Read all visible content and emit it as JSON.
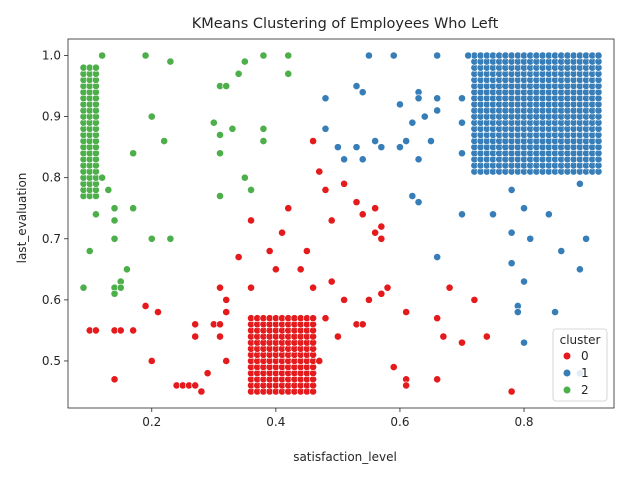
{
  "chart_data": {
    "type": "scatter",
    "title": "KMeans Clustering of Employees Who Left",
    "xlabel": "satisfaction_level",
    "ylabel": "last_evaluation",
    "xlim": [
      0.065,
      0.945
    ],
    "ylim": [
      0.423,
      1.027
    ],
    "x_ticks": [
      0.2,
      0.4,
      0.6,
      0.8
    ],
    "x_tick_labels": [
      "0.2",
      "0.4",
      "0.6",
      "0.8"
    ],
    "y_ticks": [
      0.5,
      0.6,
      0.7,
      0.8,
      0.9,
      1.0
    ],
    "y_tick_labels": [
      "0.5",
      "0.6",
      "0.7",
      "0.8",
      "0.9",
      "1.0"
    ],
    "grid": false,
    "legend": {
      "title": "cluster",
      "placement": "bottom-right",
      "entries": [
        {
          "label": "0",
          "color": "#e41a1c"
        },
        {
          "label": "1",
          "color": "#377eb8"
        },
        {
          "label": "2",
          "color": "#4daf4a"
        }
      ]
    },
    "series": [
      {
        "name": "0",
        "color": "#e41a1c",
        "dense_block": {
          "x_range": [
            0.36,
            0.46
          ],
          "x_step": 0.01,
          "y_range": [
            0.45,
            0.57
          ],
          "y_step": 0.01
        },
        "points": [
          [
            0.1,
            0.55
          ],
          [
            0.11,
            0.55
          ],
          [
            0.14,
            0.55
          ],
          [
            0.15,
            0.55
          ],
          [
            0.17,
            0.55
          ],
          [
            0.14,
            0.47
          ],
          [
            0.19,
            0.59
          ],
          [
            0.21,
            0.58
          ],
          [
            0.2,
            0.5
          ],
          [
            0.24,
            0.46
          ],
          [
            0.25,
            0.46
          ],
          [
            0.26,
            0.46
          ],
          [
            0.27,
            0.46
          ],
          [
            0.28,
            0.45
          ],
          [
            0.29,
            0.48
          ],
          [
            0.27,
            0.56
          ],
          [
            0.27,
            0.54
          ],
          [
            0.3,
            0.56
          ],
          [
            0.31,
            0.56
          ],
          [
            0.31,
            0.54
          ],
          [
            0.31,
            0.62
          ],
          [
            0.32,
            0.6
          ],
          [
            0.32,
            0.58
          ],
          [
            0.32,
            0.5
          ],
          [
            0.34,
            0.67
          ],
          [
            0.36,
            0.73
          ],
          [
            0.36,
            0.62
          ],
          [
            0.39,
            0.68
          ],
          [
            0.4,
            0.65
          ],
          [
            0.41,
            0.71
          ],
          [
            0.42,
            0.75
          ],
          [
            0.44,
            0.65
          ],
          [
            0.45,
            0.68
          ],
          [
            0.46,
            0.62
          ],
          [
            0.46,
            0.86
          ],
          [
            0.47,
            0.81
          ],
          [
            0.47,
            0.5
          ],
          [
            0.48,
            0.78
          ],
          [
            0.48,
            0.57
          ],
          [
            0.49,
            0.73
          ],
          [
            0.49,
            0.63
          ],
          [
            0.5,
            0.54
          ],
          [
            0.51,
            0.79
          ],
          [
            0.51,
            0.6
          ],
          [
            0.53,
            0.76
          ],
          [
            0.53,
            0.56
          ],
          [
            0.54,
            0.74
          ],
          [
            0.54,
            0.56
          ],
          [
            0.55,
            0.6
          ],
          [
            0.56,
            0.75
          ],
          [
            0.56,
            0.71
          ],
          [
            0.57,
            0.72
          ],
          [
            0.57,
            0.7
          ],
          [
            0.57,
            0.61
          ],
          [
            0.58,
            0.62
          ],
          [
            0.59,
            0.49
          ],
          [
            0.61,
            0.58
          ],
          [
            0.61,
            0.47
          ],
          [
            0.61,
            0.46
          ],
          [
            0.66,
            0.57
          ],
          [
            0.66,
            0.47
          ],
          [
            0.67,
            0.54
          ],
          [
            0.68,
            0.62
          ],
          [
            0.7,
            0.53
          ],
          [
            0.72,
            0.6
          ],
          [
            0.74,
            0.54
          ],
          [
            0.78,
            0.45
          ]
        ]
      },
      {
        "name": "1",
        "color": "#377eb8",
        "dense_block": {
          "x_range": [
            0.72,
            0.92
          ],
          "x_step": 0.01,
          "y_range": [
            0.81,
            1.0
          ],
          "y_step": 0.01
        },
        "points": [
          [
            0.48,
            0.93
          ],
          [
            0.48,
            0.88
          ],
          [
            0.5,
            0.85
          ],
          [
            0.51,
            0.83
          ],
          [
            0.53,
            0.95
          ],
          [
            0.53,
            0.85
          ],
          [
            0.54,
            0.94
          ],
          [
            0.54,
            0.83
          ],
          [
            0.55,
            1.0
          ],
          [
            0.56,
            0.86
          ],
          [
            0.57,
            0.85
          ],
          [
            0.59,
            1.0
          ],
          [
            0.6,
            0.92
          ],
          [
            0.6,
            0.85
          ],
          [
            0.61,
            0.86
          ],
          [
            0.62,
            0.89
          ],
          [
            0.62,
            0.77
          ],
          [
            0.63,
            0.94
          ],
          [
            0.63,
            0.93
          ],
          [
            0.63,
            0.83
          ],
          [
            0.63,
            0.76
          ],
          [
            0.64,
            0.9
          ],
          [
            0.65,
            0.86
          ],
          [
            0.66,
            1.0
          ],
          [
            0.66,
            0.93
          ],
          [
            0.66,
            0.91
          ],
          [
            0.66,
            0.67
          ],
          [
            0.7,
            0.93
          ],
          [
            0.7,
            0.89
          ],
          [
            0.7,
            0.84
          ],
          [
            0.7,
            0.74
          ],
          [
            0.71,
            1.0
          ],
          [
            0.75,
            0.74
          ],
          [
            0.78,
            0.78
          ],
          [
            0.78,
            0.71
          ],
          [
            0.78,
            0.66
          ],
          [
            0.79,
            0.59
          ],
          [
            0.79,
            0.58
          ],
          [
            0.8,
            0.75
          ],
          [
            0.8,
            0.63
          ],
          [
            0.8,
            0.53
          ],
          [
            0.81,
            0.7
          ],
          [
            0.84,
            0.74
          ],
          [
            0.85,
            0.58
          ],
          [
            0.86,
            0.68
          ],
          [
            0.89,
            0.79
          ],
          [
            0.89,
            0.65
          ],
          [
            0.9,
            0.7
          ],
          [
            0.89,
            0.48
          ]
        ]
      },
      {
        "name": "2",
        "color": "#4daf4a",
        "dense_block": {
          "x_range": [
            0.09,
            0.11
          ],
          "x_step": 0.01,
          "y_range": [
            0.77,
            0.98
          ],
          "y_step": 0.01
        },
        "points": [
          [
            0.09,
            0.62
          ],
          [
            0.1,
            0.68
          ],
          [
            0.11,
            0.74
          ],
          [
            0.12,
            0.8
          ],
          [
            0.12,
            1.0
          ],
          [
            0.13,
            0.78
          ],
          [
            0.14,
            0.75
          ],
          [
            0.14,
            0.73
          ],
          [
            0.14,
            0.7
          ],
          [
            0.14,
            0.62
          ],
          [
            0.14,
            0.61
          ],
          [
            0.15,
            0.63
          ],
          [
            0.15,
            0.62
          ],
          [
            0.16,
            0.65
          ],
          [
            0.17,
            0.84
          ],
          [
            0.17,
            0.75
          ],
          [
            0.19,
            1.0
          ],
          [
            0.2,
            0.9
          ],
          [
            0.2,
            0.7
          ],
          [
            0.22,
            0.86
          ],
          [
            0.23,
            0.99
          ],
          [
            0.23,
            0.7
          ],
          [
            0.3,
            0.89
          ],
          [
            0.31,
            0.95
          ],
          [
            0.31,
            0.87
          ],
          [
            0.31,
            0.84
          ],
          [
            0.31,
            0.77
          ],
          [
            0.32,
            0.95
          ],
          [
            0.33,
            0.88
          ],
          [
            0.34,
            0.97
          ],
          [
            0.35,
            0.99
          ],
          [
            0.35,
            0.8
          ],
          [
            0.36,
            0.78
          ],
          [
            0.38,
            1.0
          ],
          [
            0.38,
            0.88
          ],
          [
            0.38,
            0.86
          ],
          [
            0.42,
            1.0
          ],
          [
            0.42,
            0.97
          ]
        ]
      }
    ]
  }
}
